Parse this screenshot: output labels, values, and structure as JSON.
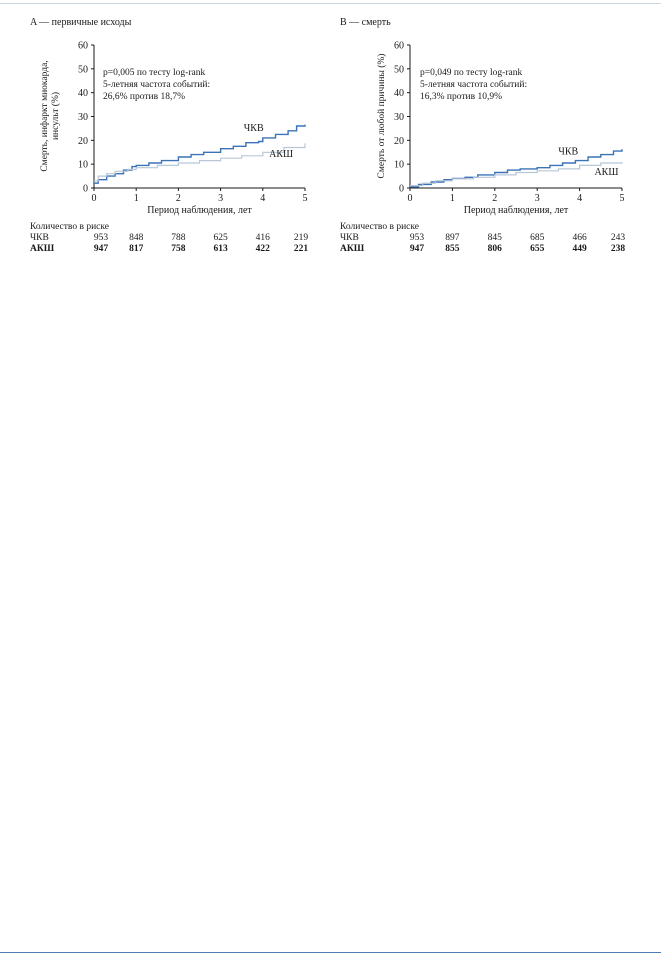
{
  "chart_data": [
    {
      "type": "line",
      "panel_title": "A — первичные исходы",
      "ylabel_lines": [
        "Смерть, инфаркт миокарда,",
        "инсульт (%)"
      ],
      "xlabel": "Период наблюдения, лет",
      "xlim": [
        0,
        5
      ],
      "ylim": [
        0,
        60
      ],
      "xticks": [
        0,
        1,
        2,
        3,
        4,
        5
      ],
      "yticks": [
        0,
        10,
        20,
        30,
        40,
        50,
        60
      ],
      "annotation": [
        "p=0,005 по тесту log-rank",
        "5-летняя частота событий:",
        "26,6% против 18,7%"
      ],
      "series": [
        {
          "name": "ЧКВ",
          "color": "#3a73b8",
          "x": [
            0,
            0.1,
            0.3,
            0.5,
            0.7,
            0.9,
            1.0,
            1.3,
            1.6,
            2.0,
            2.3,
            2.6,
            3.0,
            3.3,
            3.6,
            3.9,
            4.0,
            4.3,
            4.6,
            4.8,
            5.0
          ],
          "y": [
            2,
            3.5,
            5,
            6,
            7.5,
            9,
            9.5,
            10.5,
            11.5,
            13,
            14,
            15,
            16.5,
            17.5,
            19,
            19.5,
            21,
            22.5,
            24,
            26,
            26.6
          ]
        },
        {
          "name": "АКШ",
          "color": "#b8c7d8",
          "x": [
            0,
            0.1,
            0.3,
            0.5,
            0.8,
            1.0,
            1.5,
            2.0,
            2.5,
            3.0,
            3.5,
            4.0,
            4.5,
            5.0
          ],
          "y": [
            3,
            5,
            6,
            7,
            7.8,
            8.5,
            9.5,
            10.5,
            11.5,
            12.5,
            13.5,
            15,
            17,
            18.7
          ]
        }
      ],
      "series_labels": [
        {
          "text": "ЧКВ",
          "x": 3.55,
          "y": 24
        },
        {
          "text": "АКШ",
          "x": 4.15,
          "y": 13
        }
      ],
      "risk_table": {
        "header": "Количество в риске",
        "rows": [
          {
            "label": "ЧКВ",
            "bold": false,
            "values": [
              "953",
              "848",
              "788",
              "625",
              "416",
              "219"
            ]
          },
          {
            "label": "АКШ",
            "bold": true,
            "values": [
              "947",
              "817",
              "758",
              "613",
              "422",
              "221"
            ]
          }
        ]
      }
    },
    {
      "type": "line",
      "panel_title": "B — смерть",
      "ylabel_lines": [
        "Смерть от любой причины (%)"
      ],
      "xlabel": "Период наблюдения, лет",
      "xlim": [
        0,
        5
      ],
      "ylim": [
        0,
        60
      ],
      "xticks": [
        0,
        1,
        2,
        3,
        4,
        5
      ],
      "yticks": [
        0,
        10,
        20,
        30,
        40,
        50,
        60
      ],
      "annotation": [
        "p=0,049 по тесту log-rank",
        "5-летняя частота событий:",
        "16,3% против 10,9%"
      ],
      "series": [
        {
          "name": "ЧКВ",
          "color": "#3a73b8",
          "x": [
            0,
            0.2,
            0.5,
            0.8,
            1.0,
            1.3,
            1.6,
            2.0,
            2.3,
            2.6,
            3.0,
            3.3,
            3.6,
            3.9,
            4.2,
            4.5,
            4.8,
            5.0
          ],
          "y": [
            0.5,
            1.5,
            2.5,
            3.5,
            4,
            4.5,
            5.5,
            6.5,
            7.5,
            8,
            8.5,
            9.5,
            10.5,
            11.5,
            13,
            14,
            15.5,
            16.3
          ]
        },
        {
          "name": "АКШ",
          "color": "#b8c7d8",
          "x": [
            0,
            0.3,
            0.6,
            1.0,
            1.5,
            2.0,
            2.5,
            3.0,
            3.5,
            4.0,
            4.5,
            5.0
          ],
          "y": [
            1,
            2,
            3,
            3.8,
            4.5,
            5.5,
            6.5,
            7.2,
            8,
            9.5,
            10.5,
            10.9
          ]
        }
      ],
      "series_labels": [
        {
          "text": "ЧКВ",
          "x": 3.5,
          "y": 14
        },
        {
          "text": "АКШ",
          "x": 4.35,
          "y": 5.5
        }
      ],
      "risk_table": {
        "header": "Количество в риске",
        "rows": [
          {
            "label": "ЧКВ",
            "bold": false,
            "values": [
              "953",
              "897",
              "845",
              "685",
              "466",
              "243"
            ]
          },
          {
            "label": "АКШ",
            "bold": true,
            "values": [
              "947",
              "855",
              "806",
              "655",
              "449",
              "238"
            ]
          }
        ]
      }
    }
  ]
}
